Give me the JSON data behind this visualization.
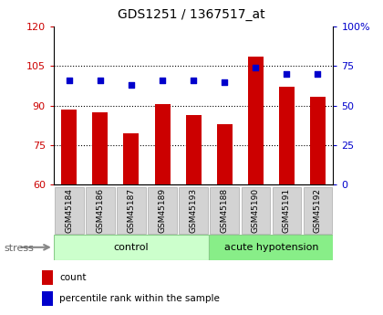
{
  "title": "GDS1251 / 1367517_at",
  "samples": [
    "GSM45184",
    "GSM45186",
    "GSM45187",
    "GSM45189",
    "GSM45193",
    "GSM45188",
    "GSM45190",
    "GSM45191",
    "GSM45192"
  ],
  "counts": [
    88.5,
    87.5,
    79.5,
    90.5,
    86.5,
    83.0,
    108.5,
    97.0,
    93.5
  ],
  "percentiles": [
    66,
    66,
    63,
    66,
    66,
    65,
    74,
    70,
    70
  ],
  "left_ylim": [
    60,
    120
  ],
  "right_ylim": [
    0,
    100
  ],
  "left_yticks": [
    60,
    75,
    90,
    105,
    120
  ],
  "right_yticks": [
    0,
    25,
    50,
    75,
    100
  ],
  "right_yticklabels": [
    "0",
    "25",
    "50",
    "75",
    "100%"
  ],
  "bar_color": "#cc0000",
  "dot_color": "#0000cc",
  "bar_width": 0.5,
  "title_color": "#000000",
  "left_tick_color": "#cc0000",
  "right_tick_color": "#0000cc",
  "grid_yticks": [
    75,
    90,
    105
  ],
  "control_count": 5,
  "acute_count": 4,
  "legend_count": "count",
  "legend_percentile": "percentile rank within the sample",
  "stress_label": "stress"
}
